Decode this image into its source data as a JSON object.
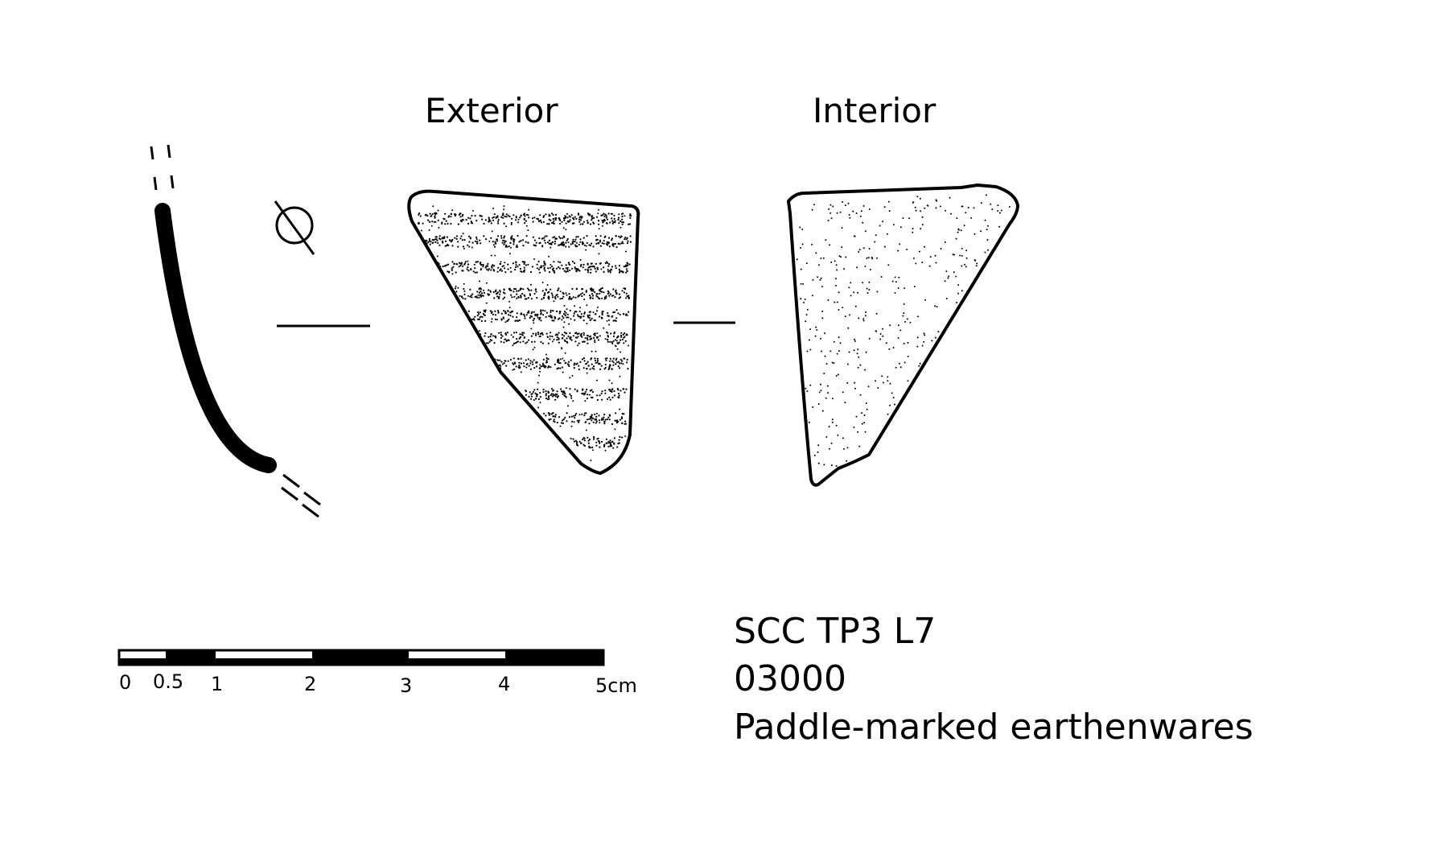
{
  "views": {
    "exterior_label": "Exterior",
    "interior_label": "Interior"
  },
  "scale_bar": {
    "ticks": [
      "0",
      "0.5",
      "1",
      "2",
      "3",
      "4",
      "5cm"
    ]
  },
  "specimen": {
    "context": "SCC TP3 L7",
    "number": "03000",
    "type": "Paddle-marked earthenwares"
  }
}
